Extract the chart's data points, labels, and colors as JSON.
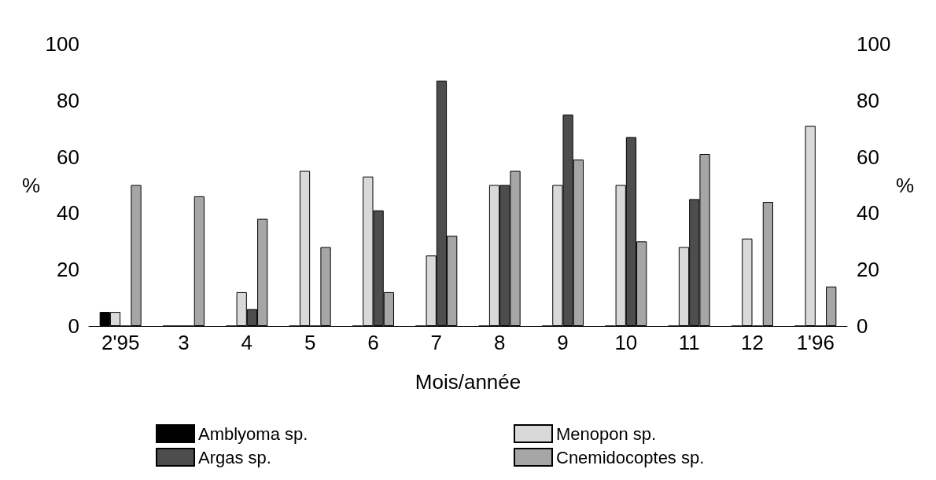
{
  "chart_data": {
    "type": "bar",
    "xlabel": "Mois/année",
    "ylabel": "%",
    "y2label": "%",
    "categories": [
      "2'95",
      "3",
      "4",
      "5",
      "6",
      "7",
      "8",
      "9",
      "10",
      "11",
      "12",
      "1'96"
    ],
    "series": [
      {
        "name": "Amblyoma sp.",
        "color": "#000000",
        "values": [
          5,
          0,
          0,
          0,
          0,
          0,
          0,
          0,
          0,
          0,
          0,
          0
        ]
      },
      {
        "name": "Menopon sp.",
        "color": "#d9d9d9",
        "values": [
          5,
          0,
          12,
          55,
          53,
          25,
          50,
          50,
          50,
          28,
          31,
          71
        ]
      },
      {
        "name": "Argas sp.",
        "color": "#4d4d4d",
        "values": [
          0,
          0,
          6,
          0,
          41,
          87,
          50,
          75,
          67,
          45,
          0,
          0
        ]
      },
      {
        "name": "Cnemidocoptes sp.",
        "color": "#a6a6a6",
        "values": [
          50,
          46,
          38,
          28,
          12,
          32,
          55,
          59,
          30,
          61,
          44,
          14
        ]
      }
    ],
    "ylim": [
      0,
      100
    ],
    "yticks": [
      0,
      20,
      40,
      60,
      80,
      100
    ],
    "y2lim": [
      0,
      100
    ],
    "y2ticks": [
      0,
      20,
      40,
      60,
      80,
      100
    ],
    "grid": false,
    "legend": "bottom"
  }
}
